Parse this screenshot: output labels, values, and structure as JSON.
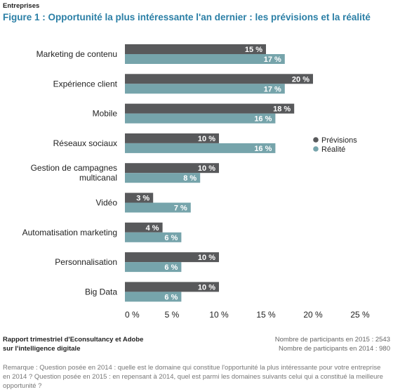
{
  "header": {
    "section": "Entreprises",
    "title": "Figure 1 : Opportunité la plus intéressante l'an dernier : les prévisions et la réalité"
  },
  "colors": {
    "previsions": "#58595b",
    "realite": "#76a4ab"
  },
  "chart_data": {
    "type": "bar",
    "orientation": "horizontal",
    "categories": [
      [
        "Marketing de contenu"
      ],
      [
        "Expérience client"
      ],
      [
        "Mobile"
      ],
      [
        "Réseaux sociaux"
      ],
      [
        "Gestion de campagnes",
        "multicanal"
      ],
      [
        "Vidéo"
      ],
      [
        "Automatisation marketing"
      ],
      [
        "Personnalisation"
      ],
      [
        "Big Data"
      ]
    ],
    "series": [
      {
        "name": "Prévisions",
        "values": [
          15,
          20,
          18,
          10,
          10,
          3,
          4,
          10,
          10
        ]
      },
      {
        "name": "Réalité",
        "values": [
          17,
          17,
          16,
          16,
          8,
          7,
          6,
          6,
          6
        ]
      }
    ],
    "value_suffix": " %",
    "xlim": [
      0,
      25
    ],
    "xticks": [
      0,
      5,
      10,
      15,
      20,
      25
    ],
    "xtick_labels": [
      "0 %",
      "5 %",
      "10 %",
      "15 %",
      "20 %",
      "25 %"
    ],
    "legend_position": "right",
    "grid": false
  },
  "footer": {
    "source_line1": "Rapport trimestriel d'Econsultancy et Adobe",
    "source_line2": "sur l'intelligence digitale",
    "participants_2015": "Nombre de participants en 2015 : 2543",
    "participants_2014": "Nombre de participants en 2014 : 980",
    "remark": "Remarque : Question posée en 2014 : quelle est le domaine qui constitue l'opportunité la plus intéressante pour votre entreprise en 2014 ? Question posée en 2015 : en repensant à 2014, quel est parmi les domaines suivants celui qui a constitué la meilleure opportunité ?"
  }
}
